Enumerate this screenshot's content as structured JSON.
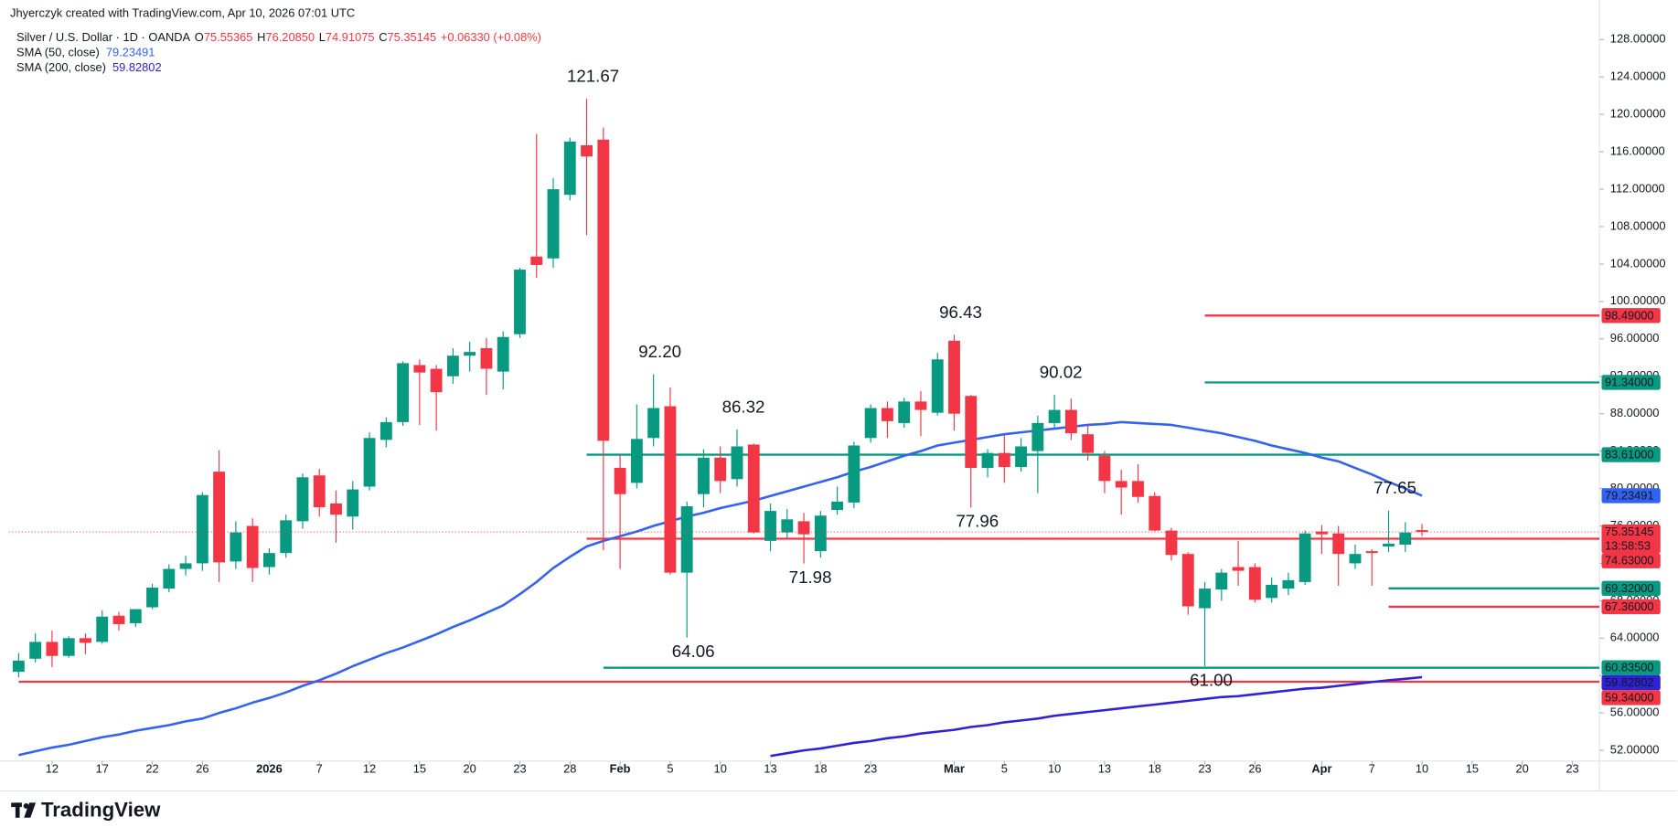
{
  "header": {
    "attribution": "Jhyerczyk created with TradingView.com, Apr 10, 2026 07:01 UTC",
    "symbol": "Silver / U.S. Dollar · 1D · OANDA",
    "ohlc": [
      {
        "key": "O",
        "value": "75.55365"
      },
      {
        "key": "H",
        "value": "76.20850"
      },
      {
        "key": "L",
        "value": "74.91075"
      },
      {
        "key": "C",
        "value": "75.35145"
      }
    ],
    "change": "+0.06330 (+0.08%)"
  },
  "footer": {
    "brand": "TradingView"
  },
  "chart_data": {
    "type": "candlestick",
    "up_color": "#089981",
    "down_color": "#f23645",
    "grid": false,
    "categories": [
      null,
      null,
      "12",
      null,
      null,
      "17",
      null,
      null,
      "22",
      null,
      null,
      "26",
      null,
      null,
      null,
      "2026",
      null,
      null,
      "7",
      null,
      null,
      "12",
      null,
      null,
      "15",
      null,
      null,
      "20",
      null,
      null,
      "23",
      null,
      null,
      "28",
      null,
      null,
      "Feb",
      null,
      null,
      "5",
      null,
      null,
      "10",
      null,
      null,
      "13",
      null,
      null,
      "18",
      null,
      null,
      "23",
      null,
      null,
      null,
      null,
      "Mar",
      null,
      null,
      "5",
      null,
      null,
      "10",
      null,
      null,
      "13",
      null,
      null,
      "18",
      null,
      null,
      "23",
      null,
      null,
      "26",
      null,
      null,
      null,
      "Apr",
      null,
      null,
      "7",
      null,
      null,
      "10",
      null,
      null,
      "15",
      null,
      null,
      "20",
      null,
      null,
      "23"
    ],
    "open": [
      60.4,
      61.8,
      63.6,
      62.1,
      64.0,
      63.6,
      66.4,
      65.6,
      67.3,
      69.3,
      71.4,
      72.0,
      81.8,
      72.2,
      76.0,
      71.6,
      73.1,
      76.5,
      81.4,
      78.4,
      77.0,
      80.2,
      85.2,
      87.1,
      93.2,
      92.8,
      92.0,
      94.2,
      95.0,
      92.5,
      96.5,
      104.8,
      104.6,
      111.4,
      116.7,
      117.3,
      82.2,
      80.6,
      85.4,
      88.8,
      71.0,
      79.4,
      83.3,
      81.0,
      84.7,
      74.4,
      75.3,
      76.5,
      73.3,
      77.7,
      78.5,
      85.4,
      88.6,
      87.0,
      89.3,
      88.1,
      95.8,
      89.9,
      82.2,
      83.8,
      82.3,
      84.0,
      87.0,
      88.4,
      85.8,
      83.5,
      80.8,
      80.8,
      79.2,
      75.5,
      73.0,
      67.2,
      69.2,
      71.6,
      71.6,
      68.3,
      69.3,
      70.0,
      75.4,
      75.2,
      72.0,
      73.3,
      73.8,
      74.0,
      75.55365,
      null,
      null,
      null,
      null,
      null,
      null,
      null,
      null,
      null
    ],
    "high": [
      62.4,
      64.5,
      64.8,
      64.2,
      64.5,
      67.0,
      66.8,
      67.1,
      69.8,
      71.9,
      72.8,
      79.6,
      84.1,
      76.5,
      76.8,
      73.6,
      77.2,
      81.6,
      82.1,
      79.8,
      80.8,
      86.0,
      87.6,
      93.6,
      93.8,
      93.2,
      95.0,
      95.7,
      96.1,
      96.8,
      103.6,
      117.9,
      113.2,
      117.5,
      121.67,
      118.6,
      83.6,
      89.0,
      92.2,
      90.8,
      78.6,
      84.2,
      84.5,
      86.32,
      84.8,
      78.4,
      77.8,
      77.4,
      77.6,
      80.2,
      85.0,
      89.0,
      89.3,
      89.7,
      90.4,
      94.5,
      96.43,
      90.0,
      84.2,
      85.8,
      85.4,
      87.8,
      90.02,
      89.6,
      86.8,
      84.0,
      82.0,
      82.6,
      79.6,
      75.8,
      73.2,
      70.0,
      71.4,
      74.4,
      72.0,
      70.5,
      71.0,
      75.5,
      76.1,
      76.0,
      74.0,
      73.5,
      77.65,
      76.4,
      76.2085,
      null,
      null,
      null,
      null,
      null,
      null,
      null,
      null,
      null
    ],
    "low": [
      59.8,
      61.4,
      60.9,
      61.9,
      62.3,
      63.4,
      64.8,
      65.2,
      67.1,
      68.9,
      70.7,
      71.2,
      70.0,
      71.4,
      70.0,
      70.8,
      72.6,
      75.7,
      77.0,
      74.2,
      75.6,
      79.8,
      84.4,
      86.7,
      86.8,
      86.2,
      91.2,
      92.5,
      90.0,
      90.6,
      96.1,
      102.5,
      103.6,
      110.8,
      107.1,
      73.4,
      71.4,
      80.0,
      84.5,
      70.8,
      64.06,
      78.0,
      79.5,
      80.2,
      75.2,
      73.3,
      74.6,
      71.98,
      72.6,
      77.2,
      77.9,
      84.9,
      85.4,
      86.5,
      85.6,
      87.8,
      86.2,
      77.96,
      81.2,
      80.6,
      81.8,
      79.5,
      86.5,
      85.2,
      83.0,
      79.5,
      77.2,
      78.5,
      75.4,
      72.3,
      66.5,
      61.0,
      68.0,
      69.6,
      67.8,
      67.8,
      68.6,
      69.7,
      73.0,
      69.6,
      71.4,
      69.6,
      73.2,
      73.2,
      74.91075,
      null,
      null,
      null,
      null,
      null,
      null,
      null,
      null,
      null
    ],
    "close": [
      61.6,
      63.6,
      62.1,
      64.0,
      63.5,
      66.3,
      65.5,
      67.1,
      69.4,
      71.4,
      72.0,
      79.3,
      72.1,
      75.3,
      71.5,
      73.1,
      76.6,
      81.2,
      78.0,
      77.2,
      79.9,
      85.4,
      87.1,
      93.4,
      92.4,
      90.3,
      94.2,
      94.6,
      92.8,
      96.2,
      103.4,
      103.9,
      112.0,
      117.1,
      115.5,
      85.1,
      79.4,
      85.3,
      88.6,
      71.0,
      78.1,
      83.3,
      80.8,
      84.5,
      75.3,
      77.6,
      76.7,
      75.1,
      77.1,
      78.6,
      84.6,
      88.6,
      87.2,
      89.3,
      88.4,
      93.8,
      88.0,
      82.2,
      83.8,
      82.3,
      84.5,
      87.0,
      88.4,
      85.9,
      83.8,
      80.8,
      80.1,
      79.1,
      75.5,
      72.9,
      67.4,
      69.3,
      71.0,
      71.2,
      68.1,
      69.7,
      70.2,
      75.2,
      75.1,
      73.0,
      73.0,
      73.1,
      74.1,
      75.3,
      75.35145,
      null,
      null,
      null,
      null,
      null,
      null,
      null,
      null,
      null
    ],
    "series": [
      {
        "name": "SMA (50, close)",
        "color": "#3462f0",
        "values": [
          51.5,
          51.9,
          52.3,
          52.6,
          53.0,
          53.4,
          53.7,
          54.1,
          54.4,
          54.7,
          55.1,
          55.4,
          56.0,
          56.5,
          57.1,
          57.6,
          58.2,
          58.9,
          59.5,
          60.2,
          61.0,
          61.7,
          62.4,
          63.0,
          63.7,
          64.4,
          65.2,
          65.9,
          66.7,
          67.5,
          68.7,
          70.0,
          71.5,
          72.7,
          73.8,
          74.4,
          74.9,
          75.4,
          76.0,
          76.5,
          77.0,
          77.4,
          77.9,
          78.3,
          78.7,
          79.2,
          79.7,
          80.2,
          80.7,
          81.2,
          81.8,
          82.3,
          82.9,
          83.5,
          84.0,
          84.6,
          84.9,
          85.2,
          85.5,
          85.8,
          86.0,
          86.2,
          86.4,
          86.6,
          86.8,
          86.9,
          87.1,
          87.0,
          86.9,
          86.8,
          86.5,
          86.2,
          85.9,
          85.5,
          85.1,
          84.6,
          84.2,
          83.8,
          83.3,
          82.9,
          82.2,
          81.5,
          80.7,
          80.0,
          79.23491,
          null,
          null,
          null,
          null,
          null,
          null,
          null,
          null,
          null
        ]
      },
      {
        "name": "SMA (200, close)",
        "color": "#2f22d6",
        "values": [
          null,
          null,
          null,
          null,
          null,
          null,
          null,
          null,
          null,
          null,
          null,
          null,
          null,
          null,
          null,
          null,
          null,
          null,
          null,
          null,
          null,
          null,
          null,
          null,
          null,
          null,
          null,
          null,
          null,
          null,
          null,
          null,
          null,
          null,
          null,
          null,
          null,
          null,
          null,
          null,
          null,
          null,
          null,
          null,
          null,
          51.4,
          51.7,
          52.0,
          52.2,
          52.5,
          52.8,
          53.0,
          53.3,
          53.5,
          53.8,
          54.0,
          54.2,
          54.5,
          54.7,
          55.0,
          55.2,
          55.4,
          55.7,
          55.9,
          56.1,
          56.3,
          56.5,
          56.7,
          56.9,
          57.1,
          57.3,
          57.5,
          57.7,
          57.8,
          58.0,
          58.2,
          58.4,
          58.6,
          58.7,
          58.9,
          59.1,
          59.3,
          59.5,
          59.65,
          59.82802,
          null,
          null,
          null,
          null,
          null,
          null,
          null,
          null,
          null
        ]
      }
    ],
    "levels": [
      {
        "value": 98.49,
        "label": "98.49000",
        "color": "#f23645",
        "start": 71
      },
      {
        "value": 91.34,
        "label": "91.34000",
        "color": "#089981",
        "start": 71
      },
      {
        "value": 83.61,
        "label": "83.61000",
        "color": "#089981",
        "start": 34
      },
      {
        "value": 74.63,
        "label": "74.63000",
        "color": "#f23645",
        "start": 34
      },
      {
        "value": 69.32,
        "label": "69.32000",
        "color": "#089981",
        "start": 82
      },
      {
        "value": 67.36,
        "label": "67.36000",
        "color": "#f23645",
        "start": 82
      },
      {
        "value": 60.835,
        "label": "60.83500",
        "color": "#089981",
        "start": 35
      },
      {
        "value": 59.34,
        "label": "59.34000",
        "color": "#f23645",
        "start": 0
      }
    ],
    "annotations": [
      {
        "text": "121.67",
        "bar": 34,
        "value": 121.67,
        "position": "above"
      },
      {
        "text": "92.20",
        "bar": 38,
        "value": 92.2,
        "position": "above"
      },
      {
        "text": "86.32",
        "bar": 43,
        "value": 86.32,
        "position": "above"
      },
      {
        "text": "96.43",
        "bar": 56,
        "value": 96.43,
        "position": "above"
      },
      {
        "text": "90.02",
        "bar": 62,
        "value": 90.02,
        "position": "above"
      },
      {
        "text": "77.65",
        "bar": 82,
        "value": 77.65,
        "position": "above"
      },
      {
        "text": "64.06",
        "bar": 40,
        "value": 64.06,
        "position": "below"
      },
      {
        "text": "71.98",
        "bar": 47,
        "value": 71.98,
        "position": "below"
      },
      {
        "text": "77.96",
        "bar": 57,
        "value": 77.96,
        "position": "below"
      },
      {
        "text": "61.00",
        "bar": 71,
        "value": 61.0,
        "position": "below"
      }
    ],
    "countdown": "13:58:53",
    "ylim": [
      50.86,
      129.03
    ],
    "yticks": [
      {
        "value": 52,
        "label": "52.00000"
      },
      {
        "value": 56,
        "label": "56.00000"
      },
      {
        "value": 60,
        "label": "60.00000"
      },
      {
        "value": 64,
        "label": "64.00000"
      },
      {
        "value": 68,
        "label": "68.00000"
      },
      {
        "value": 72,
        "label": "72.00000"
      },
      {
        "value": 76,
        "label": "76.00000"
      },
      {
        "value": 80,
        "label": "80.00000"
      },
      {
        "value": 84,
        "label": "84.00000"
      },
      {
        "value": 88,
        "label": "88.00000"
      },
      {
        "value": 92,
        "label": "92.00000"
      },
      {
        "value": 96,
        "label": "96.00000"
      },
      {
        "value": 100,
        "label": "100.00000"
      },
      {
        "value": 104,
        "label": "104.00000"
      },
      {
        "value": 108,
        "label": "108.00000"
      },
      {
        "value": 112,
        "label": "112.00000"
      },
      {
        "value": 116,
        "label": "116.00000"
      },
      {
        "value": 120,
        "label": "120.00000"
      },
      {
        "value": 124,
        "label": "124.00000"
      },
      {
        "value": 128,
        "label": "128.00000"
      }
    ]
  }
}
